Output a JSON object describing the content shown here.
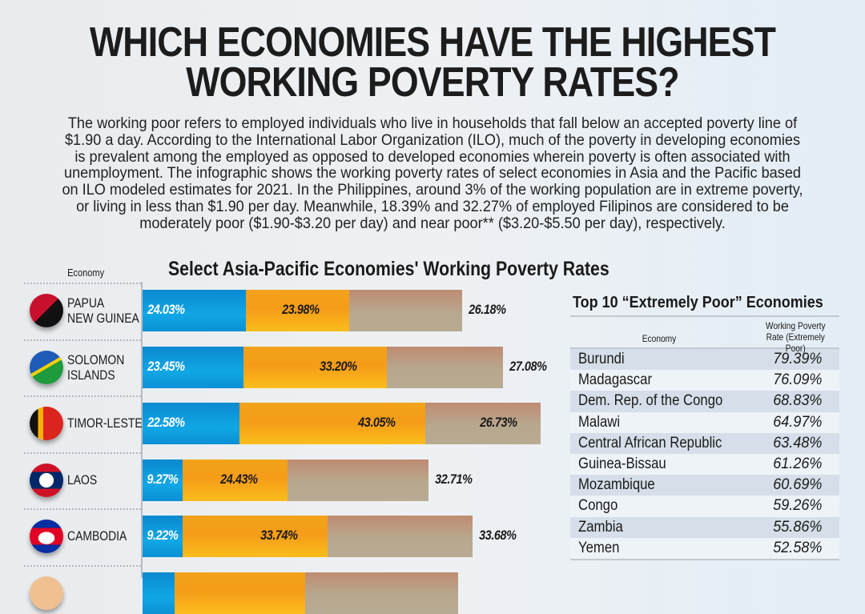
{
  "title": "WHICH ECONOMIES HAVE THE HIGHEST WORKING POVERTY RATES?",
  "intro": "The working poor refers to employed individuals who live in households that fall below an accepted poverty line of $1.90 a day. According to the International Labor Organization (ILO), much of the poverty in developing economies is prevalent among the employed as opposed to developed economies wherein poverty is often associated with unemployment. The infographic shows the working poverty rates of select economies in Asia and the Pacific based on ILO modeled estimates for 2021. In the Philippines, around 3% of the working population are in extreme poverty, or living in less than $1.90 per day. Meanwhile, 18.39% and 32.27% of employed Filipinos are considered to be moderately poor ($1.90-$3.20 per day) and near poor** ($3.20-$5.50 per day), respectively.",
  "chart_data": [
    {
      "type": "bar",
      "orientation": "horizontal",
      "stacked": true,
      "title": "Select Asia-Pacific Economies' Working Poverty Rates",
      "category_header": "Economy",
      "categories": [
        "PAPUA NEW GUINEA",
        "SOLOMON ISLANDS",
        "TIMOR-LESTE",
        "LAOS",
        "CAMBODIA"
      ],
      "colors": [
        "#0e9bdc",
        "#f7a81b",
        "#b9a68e"
      ],
      "series": [
        {
          "values": [
            24.03,
            23.45,
            22.58,
            9.27,
            9.22
          ],
          "labels": [
            "24.03%",
            "23.45%",
            "22.58%",
            "9.27%",
            "9.22%"
          ]
        },
        {
          "values": [
            23.98,
            33.2,
            43.05,
            24.43,
            33.74
          ],
          "labels": [
            "23.98%",
            "33.20%",
            "43.05%",
            "24.43%",
            "33.74%"
          ]
        },
        {
          "values": [
            26.18,
            27.08,
            26.73,
            32.71,
            33.68
          ],
          "labels": [
            "26.18%",
            "27.08%",
            "26.73%",
            "32.71%",
            "33.68%"
          ]
        }
      ],
      "grid": false,
      "legend": "none"
    },
    {
      "type": "table",
      "title": "Top 10 “Extremely Poor” Economies",
      "columns": [
        "Economy",
        "Working Poverty Rate (Extremely Poor)"
      ],
      "rows": [
        [
          "Burundi",
          "79.39%"
        ],
        [
          "Madagascar",
          "76.09%"
        ],
        [
          "Dem. Rep. of the Congo",
          "68.83%"
        ],
        [
          "Malawi",
          "64.97%"
        ],
        [
          "Central African Republic",
          "63.48%"
        ],
        [
          "Guinea-Bissau",
          "61.26%"
        ],
        [
          "Mozambique",
          "60.69%"
        ],
        [
          "Congo",
          "59.26%"
        ],
        [
          "Zambia",
          "55.86%"
        ],
        [
          "Yemen",
          "52.58%"
        ]
      ]
    }
  ]
}
